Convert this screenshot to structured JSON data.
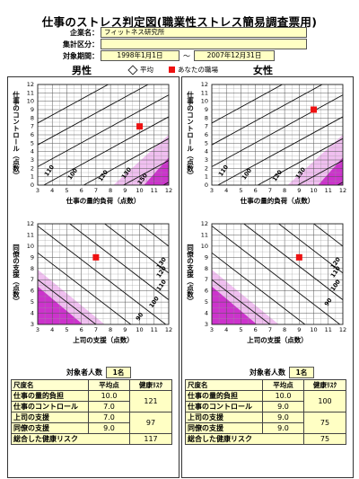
{
  "header": {
    "title": "仕事のストレス判定図(職業性ストレス簡易調査票用)",
    "company_label": "企業名：",
    "company_value": "フィットネス研究所",
    "group_label": "集計区分：",
    "group_value": "",
    "period_label": "対象期間：",
    "period_start": "1998年1月1日",
    "period_tilde": "～",
    "period_end": "2007年12月31日"
  },
  "legend": {
    "male": "男性",
    "female": "女性",
    "avg": "平均",
    "yours": "あなたの職場"
  },
  "colors": {
    "point": "#ee1111",
    "fill": "#cc33cc",
    "fill_light": "#f0bff0"
  },
  "chart_data": [
    {
      "type": "scatter",
      "id": "male-quantity-control",
      "xlabel": "仕事の量的負荷（点数）",
      "ylabel": "仕事のコントロール（点数）",
      "xlim": [
        3,
        12
      ],
      "ylim": [
        0,
        12
      ],
      "xticks": [
        "3",
        "4",
        "5",
        "6",
        "7",
        "8",
        "9",
        "10",
        "11",
        "12"
      ],
      "yticks": [
        "0",
        "1",
        "2",
        "3",
        "4",
        "5",
        "6",
        "7",
        "8",
        "9",
        "10",
        "11",
        "12"
      ],
      "contour_labels": [
        "110",
        "100",
        "120",
        "130",
        "150"
      ],
      "point": {
        "x": 10.0,
        "y": 7.0,
        "name": "あなたの職場"
      }
    },
    {
      "type": "scatter",
      "id": "female-quantity-control",
      "xlabel": "仕事の量的負荷（点数）",
      "ylabel": "仕事のコントロール（点数）",
      "xlim": [
        3,
        12
      ],
      "ylim": [
        0,
        12
      ],
      "xticks": [
        "3",
        "4",
        "5",
        "6",
        "7",
        "8",
        "9",
        "10",
        "11",
        "12"
      ],
      "yticks": [
        "0",
        "1",
        "2",
        "3",
        "4",
        "5",
        "6",
        "7",
        "8",
        "9",
        "10",
        "11",
        "12"
      ],
      "contour_labels": [
        "110",
        "100",
        "120",
        "130"
      ],
      "point": {
        "x": 10.0,
        "y": 9.0,
        "name": "あなたの職場"
      }
    },
    {
      "type": "scatter",
      "id": "male-support",
      "xlabel": "上司の支援（点数）",
      "ylabel": "同僚の支援（点数）",
      "xlim": [
        3,
        12
      ],
      "ylim": [
        3,
        12
      ],
      "xticks": [
        "3",
        "4",
        "5",
        "6",
        "7",
        "8",
        "9",
        "10",
        "11",
        "12"
      ],
      "yticks": [
        "3",
        "4",
        "5",
        "6",
        "7",
        "8",
        "9",
        "10",
        "11",
        "12"
      ],
      "contour_labels": [
        "130",
        "120",
        "110",
        "100",
        "90"
      ],
      "point": {
        "x": 7.0,
        "y": 9.0,
        "name": "あなたの職場"
      }
    },
    {
      "type": "scatter",
      "id": "female-support",
      "xlabel": "上司の支援（点数）",
      "ylabel": "同僚の支援（点数）",
      "xlim": [
        3,
        12
      ],
      "ylim": [
        3,
        12
      ],
      "xticks": [
        "3",
        "4",
        "5",
        "6",
        "7",
        "8",
        "9",
        "10",
        "11",
        "12"
      ],
      "yticks": [
        "3",
        "4",
        "5",
        "6",
        "7",
        "8",
        "9",
        "10",
        "11",
        "12"
      ],
      "contour_labels": [
        "120",
        "110",
        "100",
        "90"
      ],
      "point": {
        "x": 9.0,
        "y": 9.0,
        "name": "あなたの職場"
      }
    }
  ],
  "male_table": {
    "count_label": "対象者人数",
    "count_value": "1名",
    "headers": [
      "尺度名",
      "平均点",
      "健康ﾘｽｸ"
    ],
    "rows": [
      {
        "name": "仕事の量的負担",
        "value": "10.0"
      },
      {
        "name": "仕事のコントロール",
        "value": "7.0"
      },
      {
        "name": "上司の支援",
        "value": "7.0"
      },
      {
        "name": "同僚の支援",
        "value": "9.0"
      }
    ],
    "risk1": "121",
    "risk2": "97",
    "total_label": "総合した健康リスク",
    "total_value": "117"
  },
  "female_table": {
    "count_label": "対象者人数",
    "count_value": "1名",
    "headers": [
      "尺度名",
      "平均点",
      "健康ﾘｽｸ"
    ],
    "rows": [
      {
        "name": "仕事の量的負担",
        "value": "10.0"
      },
      {
        "name": "仕事のコントロール",
        "value": "9.0"
      },
      {
        "name": "上司の支援",
        "value": "9.0"
      },
      {
        "name": "同僚の支援",
        "value": "9.0"
      }
    ],
    "risk1": "100",
    "risk2": "75",
    "total_label": "総合した健康リスク",
    "total_value": "75"
  }
}
